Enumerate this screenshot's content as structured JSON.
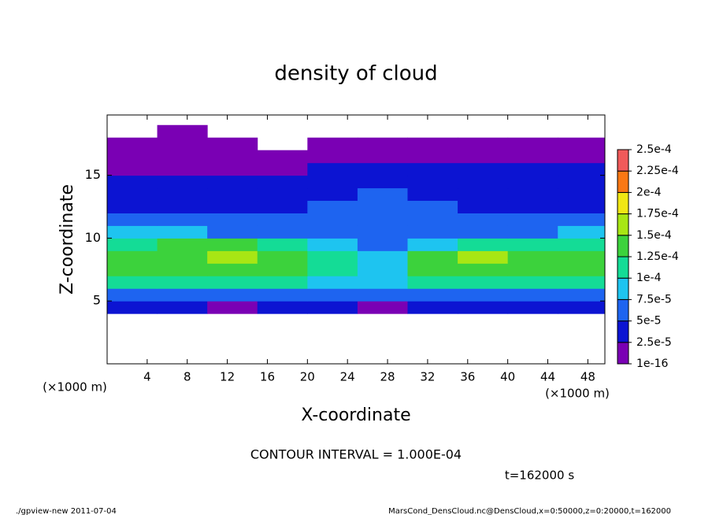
{
  "chart_data": {
    "type": "heatmap",
    "title": "density of cloud",
    "x_label": "X-coordinate",
    "y_label": "Z-coordinate",
    "x_unit": "(×1000 m)",
    "contour_note": "CONTOUR INTERVAL = 1.000E-04",
    "time_note": "t=162000 s",
    "footer_left": "./gpview-new  2011-07-04",
    "footer_right": "MarsCond_DensCloud.nc@DensCloud,x=0:50000,z=0:20000,t=162000",
    "xlim": [
      0,
      49.7
    ],
    "ylim": [
      0,
      19.8
    ],
    "xticks": [
      4,
      8,
      12,
      16,
      20,
      24,
      28,
      32,
      36,
      40,
      44,
      48
    ],
    "yticks": [
      5,
      10,
      15
    ],
    "x_edges": [
      0,
      5,
      10,
      15,
      20,
      25,
      30,
      35,
      40,
      45,
      50
    ],
    "z_edges": [
      0,
      1,
      2,
      3,
      4,
      5,
      6,
      7,
      8,
      9,
      10,
      11,
      12,
      13,
      14,
      15,
      16,
      17,
      18,
      19,
      20
    ],
    "values": [
      [
        0,
        0,
        0,
        0,
        0,
        0,
        0,
        0,
        0,
        0
      ],
      [
        0,
        0,
        0,
        0,
        0,
        0,
        0,
        0,
        0,
        0
      ],
      [
        0,
        0,
        0,
        0,
        0,
        0,
        0,
        0,
        0,
        0
      ],
      [
        0,
        0,
        0,
        0,
        0,
        0,
        0,
        0,
        0,
        0
      ],
      [
        3e-05,
        3e-05,
        2e-05,
        3e-05,
        3e-05,
        2e-05,
        3e-05,
        3e-05,
        3e-05,
        3e-05
      ],
      [
        7e-05,
        6e-05,
        7e-05,
        6e-05,
        6e-05,
        7e-05,
        6e-05,
        7e-05,
        7e-05,
        7e-05
      ],
      [
        0.00011,
        0.00011,
        0.000115,
        0.00011,
        9e-05,
        9e-05,
        0.00011,
        0.000115,
        0.000115,
        0.00011
      ],
      [
        0.00013,
        0.000135,
        0.000145,
        0.00013,
        0.0001,
        9e-05,
        0.00013,
        0.000145,
        0.00014,
        0.000135
      ],
      [
        0.00013,
        0.000135,
        0.000155,
        0.000135,
        0.000105,
        8e-05,
        0.000125,
        0.00015,
        0.000145,
        0.00014
      ],
      [
        0.00012,
        0.000125,
        0.00013,
        0.00011,
        9e-05,
        7e-05,
        9e-05,
        0.000115,
        0.00012,
        0.00012
      ],
      [
        8e-05,
        8e-05,
        7e-05,
        6e-05,
        6e-05,
        6e-05,
        6e-05,
        7e-05,
        7e-05,
        7.5e-05
      ],
      [
        5e-05,
        5e-05,
        5e-05,
        5.5e-05,
        6e-05,
        7e-05,
        6e-05,
        5e-05,
        5e-05,
        5e-05
      ],
      [
        4e-05,
        4e-05,
        4e-05,
        4.5e-05,
        5e-05,
        6e-05,
        5e-05,
        4e-05,
        4e-05,
        4e-05
      ],
      [
        3.5e-05,
        3.5e-05,
        3.5e-05,
        4e-05,
        4e-05,
        5e-05,
        4e-05,
        3.5e-05,
        3.5e-05,
        3.5e-05
      ],
      [
        3e-05,
        3e-05,
        3e-05,
        3e-05,
        3e-05,
        3.5e-05,
        3e-05,
        3e-05,
        3e-05,
        3e-05
      ],
      [
        2e-05,
        2e-05,
        2e-05,
        2e-05,
        2.5e-05,
        2.5e-05,
        2.5e-05,
        2.5e-05,
        2.5e-05,
        2.5e-05
      ],
      [
        1e-05,
        1e-05,
        1e-05,
        1e-05,
        1e-05,
        1e-05,
        1e-05,
        1e-05,
        1e-05,
        1e-05
      ],
      [
        1e-05,
        1e-05,
        1e-05,
        0,
        1e-05,
        1e-05,
        1e-05,
        1e-05,
        1e-05,
        1e-05
      ],
      [
        0,
        1e-05,
        0,
        0,
        0,
        0,
        0,
        0,
        0,
        0
      ],
      [
        0,
        0,
        0,
        0,
        0,
        0,
        0,
        0,
        0,
        0
      ]
    ],
    "colorbar": {
      "ticks": [
        {
          "value": 1e-16,
          "label": "1e-16"
        },
        {
          "value": 2.5e-05,
          "label": "2.5e-5"
        },
        {
          "value": 5e-05,
          "label": "5e-5"
        },
        {
          "value": 7.5e-05,
          "label": "7.5e-5"
        },
        {
          "value": 0.0001,
          "label": "1e-4"
        },
        {
          "value": 0.000125,
          "label": "1.25e-4"
        },
        {
          "value": 0.00015,
          "label": "1.5e-4"
        },
        {
          "value": 0.000175,
          "label": "1.75e-4"
        },
        {
          "value": 0.0002,
          "label": "2e-4"
        },
        {
          "value": 0.000225,
          "label": "2.25e-4"
        },
        {
          "value": 0.00025,
          "label": "2.5e-4"
        }
      ],
      "colors": [
        "#7a00b4",
        "#0c14d2",
        "#1e64f0",
        "#1ec4f0",
        "#14dc96",
        "#3cd23c",
        "#a8e614",
        "#f0e614",
        "#fa7814",
        "#f05a5a"
      ]
    }
  }
}
